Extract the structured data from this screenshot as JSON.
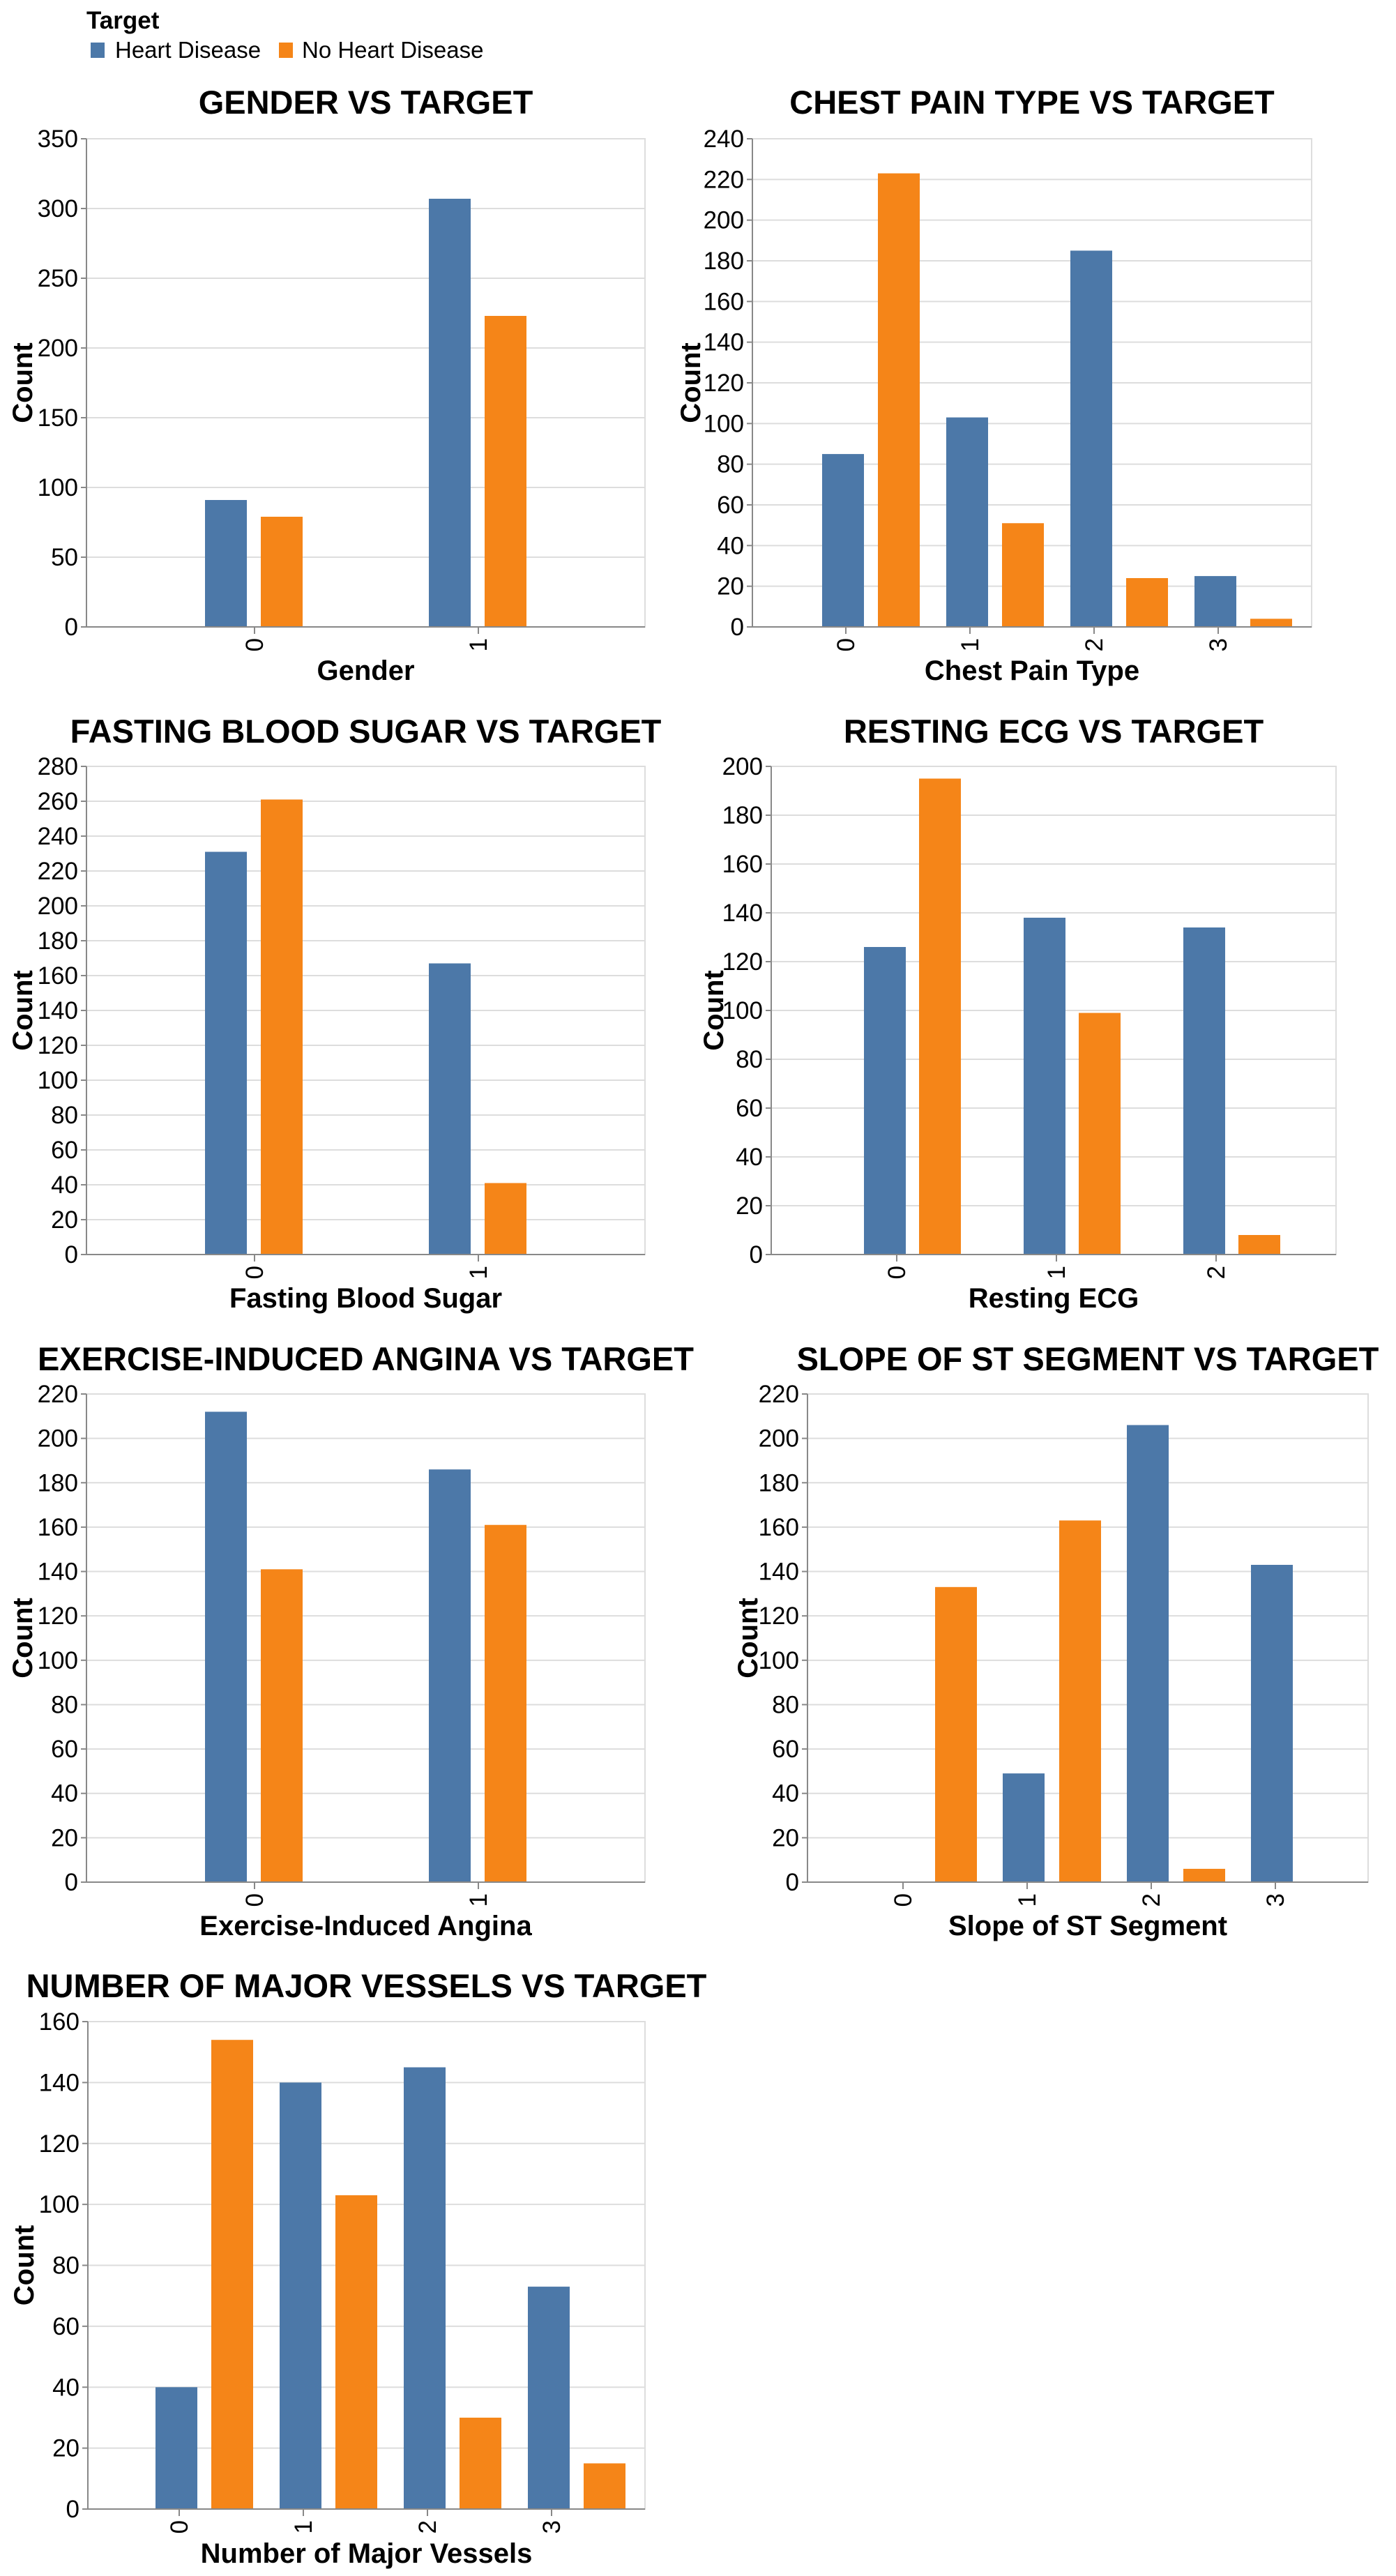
{
  "legend": {
    "title": "Target",
    "items": [
      {
        "label": "Heart Disease",
        "color": "#4c78a8"
      },
      {
        "label": "No Heart Disease",
        "color": "#f58518"
      }
    ]
  },
  "chart_data": [
    {
      "type": "bar",
      "title": "GENDER VS TARGET",
      "xlabel": "Gender",
      "ylabel": "Count",
      "categories": [
        "0",
        "1"
      ],
      "ylim": [
        0,
        350
      ],
      "yticks": [
        0,
        50,
        100,
        150,
        200,
        250,
        300,
        350
      ],
      "grid": true,
      "series": [
        {
          "name": "Heart Disease",
          "values": [
            91,
            307
          ]
        },
        {
          "name": "No Heart Disease",
          "values": [
            79,
            223
          ]
        }
      ]
    },
    {
      "type": "bar",
      "title": "CHEST PAIN TYPE VS TARGET",
      "xlabel": "Chest Pain Type",
      "ylabel": "Count",
      "categories": [
        "0",
        "1",
        "2",
        "3"
      ],
      "ylim": [
        0,
        240
      ],
      "yticks": [
        0,
        20,
        40,
        60,
        80,
        100,
        120,
        140,
        160,
        180,
        200,
        220,
        240
      ],
      "grid": true,
      "series": [
        {
          "name": "Heart Disease",
          "values": [
            85,
            103,
            185,
            25
          ]
        },
        {
          "name": "No Heart Disease",
          "values": [
            223,
            51,
            24,
            4
          ]
        }
      ]
    },
    {
      "type": "bar",
      "title": "FASTING BLOOD SUGAR VS TARGET",
      "xlabel": "Fasting Blood Sugar",
      "ylabel": "Count",
      "categories": [
        "0",
        "1"
      ],
      "ylim": [
        0,
        280
      ],
      "yticks": [
        0,
        20,
        40,
        60,
        80,
        100,
        120,
        140,
        160,
        180,
        200,
        220,
        240,
        260,
        280
      ],
      "grid": true,
      "series": [
        {
          "name": "Heart Disease",
          "values": [
            231,
            167
          ]
        },
        {
          "name": "No Heart Disease",
          "values": [
            261,
            41
          ]
        }
      ]
    },
    {
      "type": "bar",
      "title": "RESTING ECG VS TARGET",
      "xlabel": "Resting ECG",
      "ylabel": "Count",
      "categories": [
        "0",
        "1",
        "2"
      ],
      "ylim": [
        0,
        200
      ],
      "yticks": [
        0,
        20,
        40,
        60,
        80,
        100,
        120,
        140,
        160,
        180,
        200
      ],
      "grid": true,
      "series": [
        {
          "name": "Heart Disease",
          "values": [
            126,
            138,
            134
          ]
        },
        {
          "name": "No Heart Disease",
          "values": [
            195,
            99,
            8
          ]
        }
      ]
    },
    {
      "type": "bar",
      "title": "EXERCISE-INDUCED ANGINA VS TARGET",
      "xlabel": "Exercise-Induced Angina",
      "ylabel": "Count",
      "categories": [
        "0",
        "1"
      ],
      "ylim": [
        0,
        220
      ],
      "yticks": [
        0,
        20,
        40,
        60,
        80,
        100,
        120,
        140,
        160,
        180,
        200,
        220
      ],
      "grid": true,
      "series": [
        {
          "name": "Heart Disease",
          "values": [
            212,
            186
          ]
        },
        {
          "name": "No Heart Disease",
          "values": [
            141,
            161
          ]
        }
      ]
    },
    {
      "type": "bar",
      "title": "SLOPE OF ST SEGMENT VS TARGET",
      "xlabel": "Slope of ST Segment",
      "ylabel": "Count",
      "categories": [
        "0",
        "1",
        "2",
        "3"
      ],
      "ylim": [
        0,
        220
      ],
      "yticks": [
        0,
        20,
        40,
        60,
        80,
        100,
        120,
        140,
        160,
        180,
        200,
        220
      ],
      "grid": true,
      "series": [
        {
          "name": "Heart Disease",
          "values": [
            0,
            49,
            206,
            143
          ]
        },
        {
          "name": "No Heart Disease",
          "values": [
            133,
            163,
            6,
            0
          ]
        }
      ]
    },
    {
      "type": "bar",
      "title": "NUMBER OF MAJOR VESSELS VS TARGET",
      "xlabel": "Number of Major Vessels",
      "ylabel": "Count",
      "categories": [
        "0",
        "1",
        "2",
        "3"
      ],
      "ylim": [
        0,
        160
      ],
      "yticks": [
        0,
        20,
        40,
        60,
        80,
        100,
        120,
        140,
        160
      ],
      "grid": true,
      "series": [
        {
          "name": "Heart Disease",
          "values": [
            40,
            140,
            145,
            73
          ]
        },
        {
          "name": "No Heart Disease",
          "values": [
            154,
            103,
            30,
            15
          ]
        }
      ]
    }
  ]
}
